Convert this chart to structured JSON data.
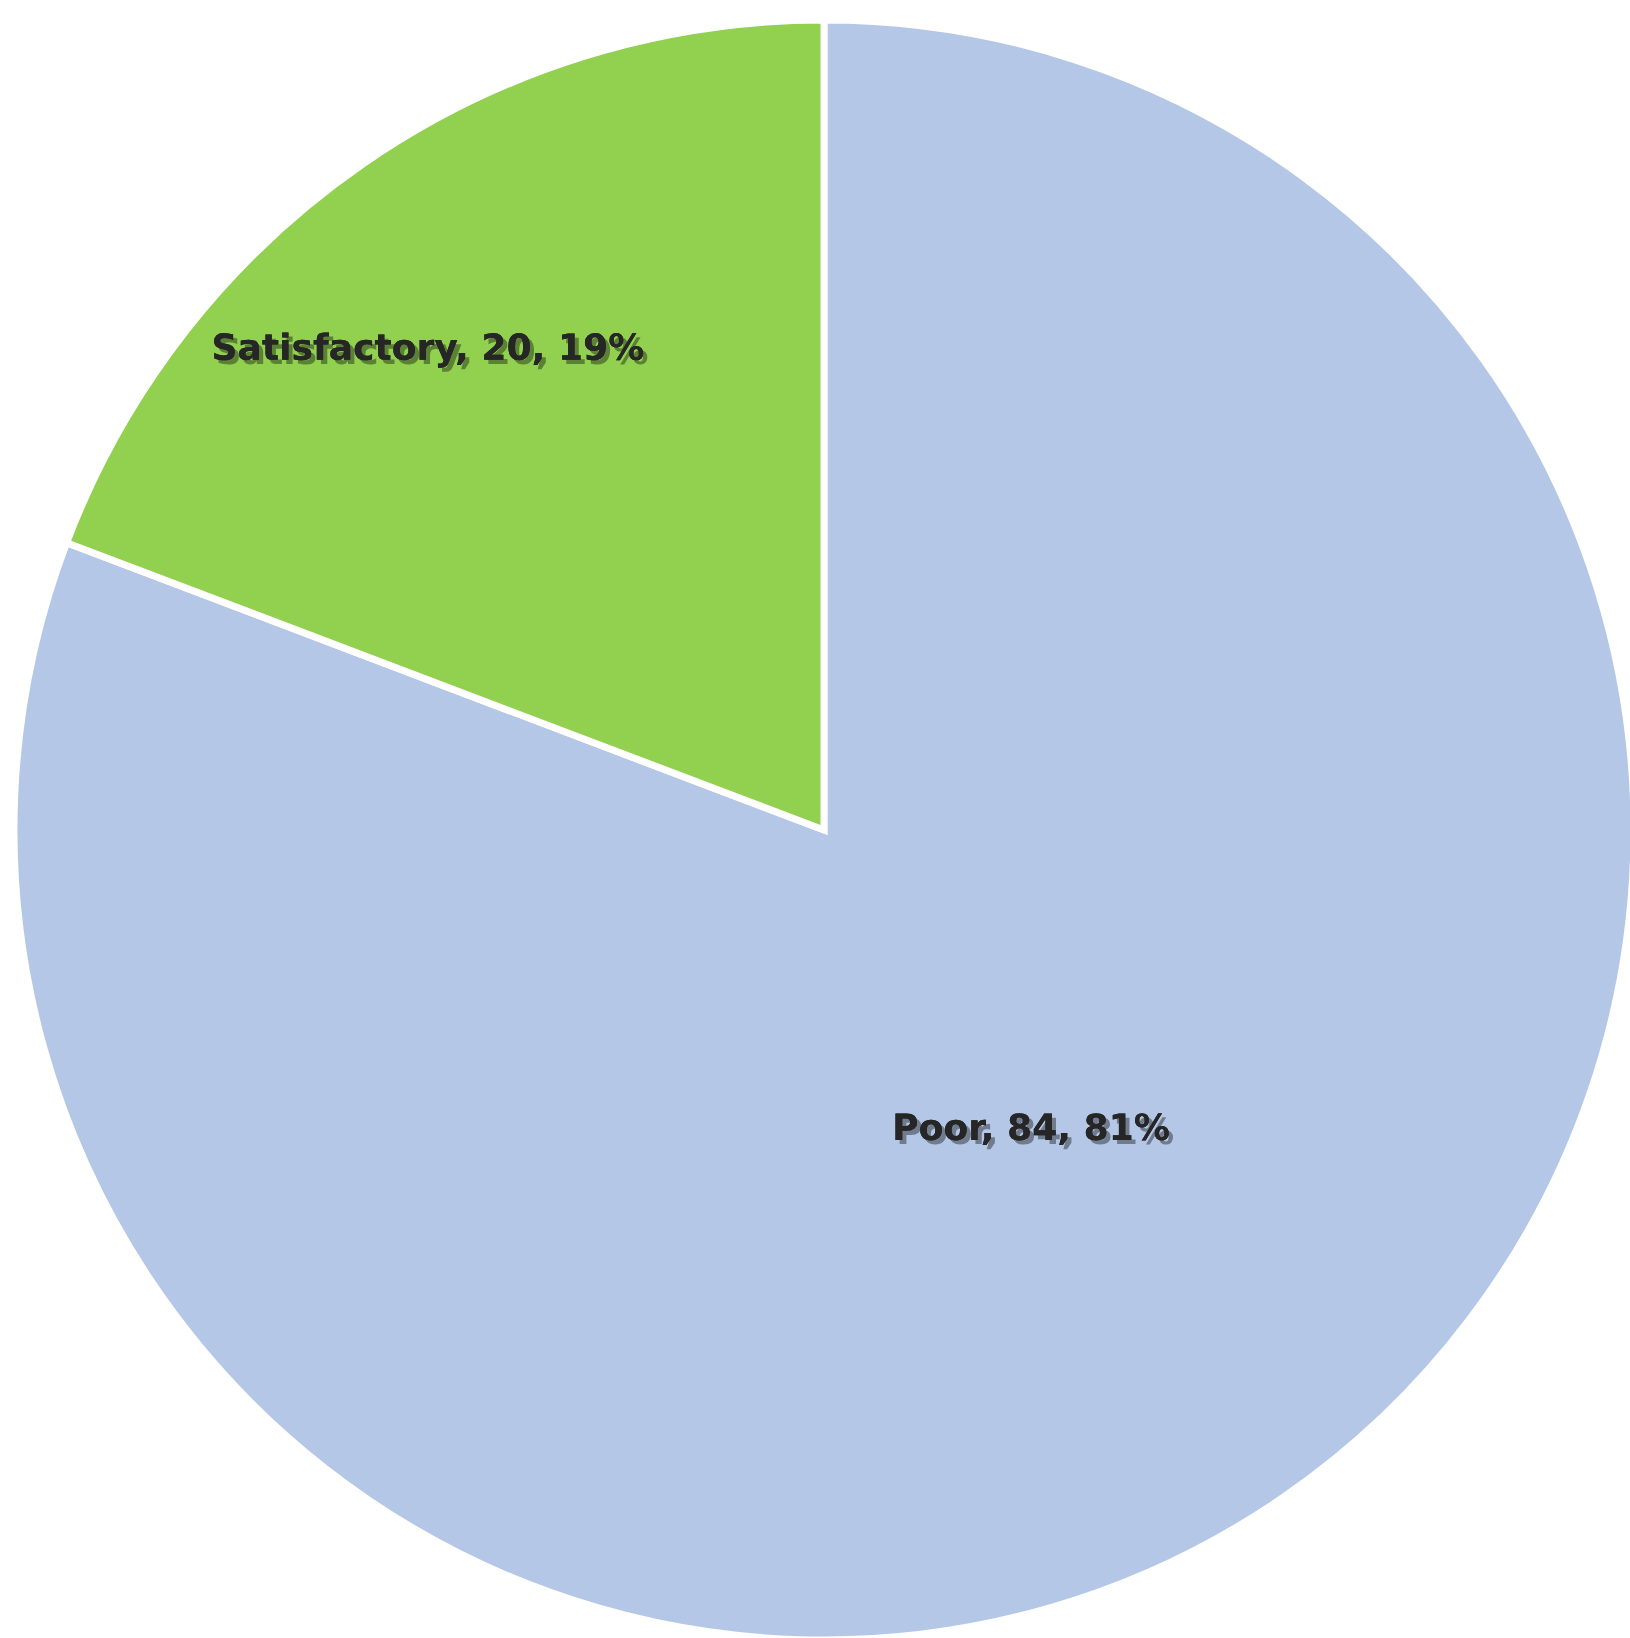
{
  "chart_data": {
    "type": "pie",
    "categories": [
      "Poor",
      "Satisfactory"
    ],
    "values": [
      84,
      20
    ],
    "colors": [
      "#b4c7e7",
      "#92d050"
    ],
    "value_labels": [
      "84, 81%",
      "20, 19%"
    ]
  }
}
